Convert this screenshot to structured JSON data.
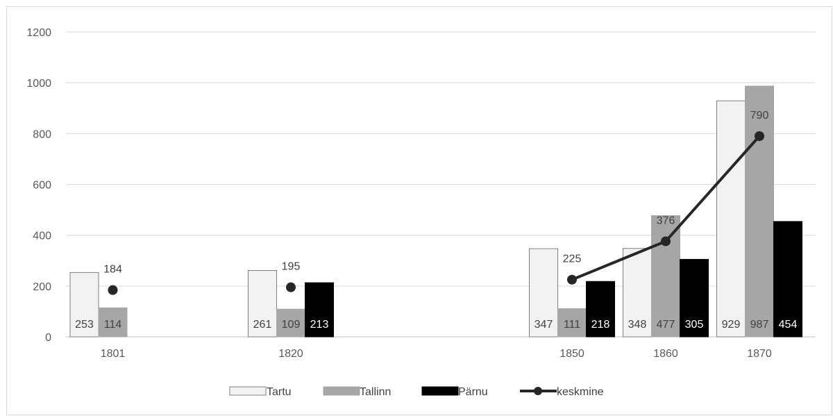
{
  "chart_data": {
    "type": "bar",
    "categories": [
      "1801",
      "1820",
      "1850",
      "1860",
      "1870"
    ],
    "x": [
      1801,
      1820,
      1850,
      1860,
      1870
    ],
    "ylim": [
      0,
      1200
    ],
    "yticks": [
      0,
      200,
      400,
      600,
      800,
      1000,
      1200
    ],
    "grid": true,
    "legend_position": "bottom",
    "series": [
      {
        "name": "Tartu",
        "type": "bar",
        "values": [
          253,
          261,
          347,
          348,
          929
        ],
        "color": "#f2f2f2"
      },
      {
        "name": "Tallinn",
        "type": "bar",
        "values": [
          114,
          109,
          111,
          477,
          987
        ],
        "color": "#a6a6a6"
      },
      {
        "name": "Pärnu",
        "type": "bar",
        "values": [
          null,
          213,
          218,
          305,
          454
        ],
        "color": "#000000"
      },
      {
        "name": "keskmine",
        "type": "line",
        "values": [
          184,
          195,
          225,
          376,
          790
        ],
        "color": "#262626"
      }
    ]
  }
}
